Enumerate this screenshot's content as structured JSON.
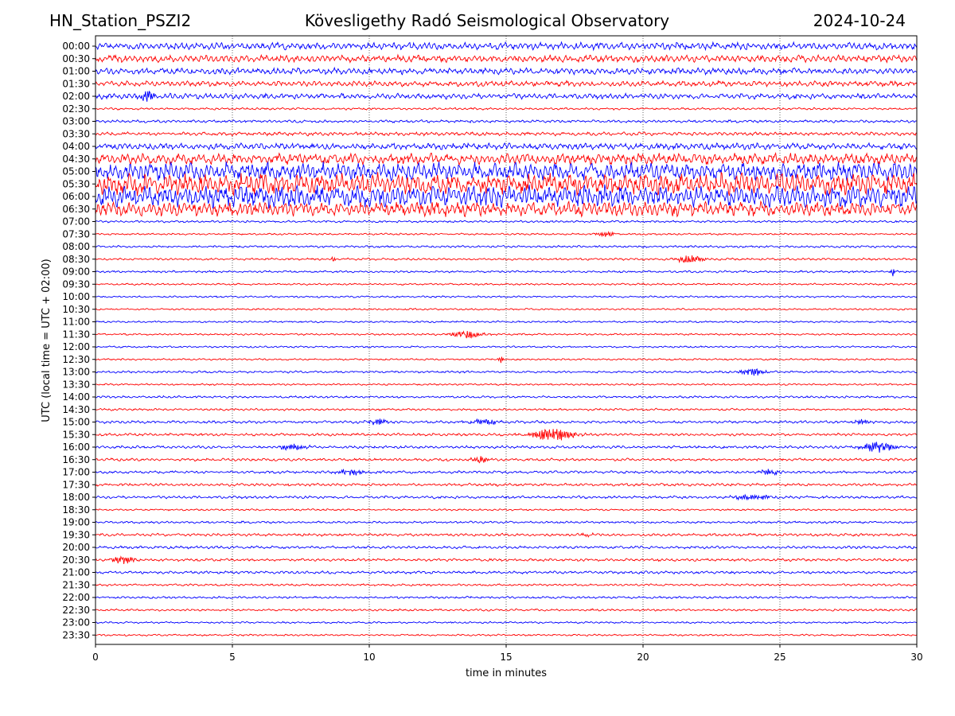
{
  "header": {
    "station": "HN_Station_PSZI2",
    "title": "Kövesligethy Radó Seismological Observatory",
    "date": "2024-10-24"
  },
  "chart_data": {
    "type": "line",
    "subtype": "helicorder",
    "xlabel": "time in minutes",
    "ylabel": "UTC (local time = UTC + 02:00)",
    "xlim": [
      0,
      30
    ],
    "xticks": [
      0,
      5,
      10,
      15,
      20,
      25,
      30
    ],
    "grid_x": [
      5,
      10,
      15,
      20,
      25
    ],
    "colors": [
      "#0000ff",
      "#ff0000"
    ],
    "rows": [
      "00:00",
      "00:30",
      "01:00",
      "01:30",
      "02:00",
      "02:30",
      "03:00",
      "03:30",
      "04:00",
      "04:30",
      "05:00",
      "05:30",
      "06:00",
      "06:30",
      "07:00",
      "07:30",
      "08:00",
      "08:30",
      "09:00",
      "09:30",
      "10:00",
      "10:30",
      "11:00",
      "11:30",
      "12:00",
      "12:30",
      "13:00",
      "13:30",
      "14:00",
      "14:30",
      "15:00",
      "15:30",
      "16:00",
      "16:30",
      "17:00",
      "17:30",
      "18:00",
      "18:30",
      "19:00",
      "19:30",
      "20:00",
      "20:30",
      "21:00",
      "21:30",
      "22:00",
      "22:30",
      "23:00",
      "23:30"
    ],
    "noise_levels": [
      4,
      4,
      3.5,
      3,
      3,
      1.2,
      1.5,
      2,
      3.5,
      6,
      10,
      12,
      12,
      8,
      1.2,
      1,
      1.2,
      1.2,
      1.2,
      1,
      1,
      1,
      1,
      1,
      1,
      1,
      1.2,
      1,
      1.2,
      1.2,
      1.5,
      1.5,
      1.5,
      1.5,
      1.5,
      1.5,
      1.5,
      1,
      1.2,
      1.5,
      1.5,
      1.5,
      1.5,
      1.2,
      1.2,
      1.2,
      1,
      1
    ],
    "events": [
      {
        "row": "02:00",
        "minute": 1.9,
        "amplitude": 8,
        "width": 0.3
      },
      {
        "row": "07:30",
        "minute": 18.7,
        "amplitude": 3,
        "width": 0.5
      },
      {
        "row": "08:30",
        "minute": 8.7,
        "amplitude": 4,
        "width": 0.1
      },
      {
        "row": "08:30",
        "minute": 21.7,
        "amplitude": 6,
        "width": 0.6
      },
      {
        "row": "09:00",
        "minute": 29.1,
        "amplitude": 8,
        "width": 0.1
      },
      {
        "row": "11:30",
        "minute": 13.6,
        "amplitude": 5,
        "width": 0.8
      },
      {
        "row": "12:30",
        "minute": 14.8,
        "amplitude": 7,
        "width": 0.1
      },
      {
        "row": "13:00",
        "minute": 24.0,
        "amplitude": 5,
        "width": 0.6
      },
      {
        "row": "15:00",
        "minute": 10.3,
        "amplitude": 5,
        "width": 0.5
      },
      {
        "row": "15:00",
        "minute": 14.2,
        "amplitude": 4,
        "width": 0.6
      },
      {
        "row": "15:00",
        "minute": 28.0,
        "amplitude": 3,
        "width": 0.5
      },
      {
        "row": "15:30",
        "minute": 16.7,
        "amplitude": 9,
        "width": 1.0
      },
      {
        "row": "16:00",
        "minute": 7.2,
        "amplitude": 4,
        "width": 0.7
      },
      {
        "row": "16:00",
        "minute": 28.6,
        "amplitude": 8,
        "width": 0.7
      },
      {
        "row": "16:30",
        "minute": 14.0,
        "amplitude": 4,
        "width": 0.5
      },
      {
        "row": "17:00",
        "minute": 9.3,
        "amplitude": 4,
        "width": 0.7
      },
      {
        "row": "17:00",
        "minute": 24.6,
        "amplitude": 4,
        "width": 0.5
      },
      {
        "row": "18:00",
        "minute": 24.0,
        "amplitude": 4,
        "width": 0.8
      },
      {
        "row": "19:30",
        "minute": 18.0,
        "amplitude": 3,
        "width": 0.3
      },
      {
        "row": "20:30",
        "minute": 1.0,
        "amplitude": 5,
        "width": 0.6
      }
    ]
  }
}
